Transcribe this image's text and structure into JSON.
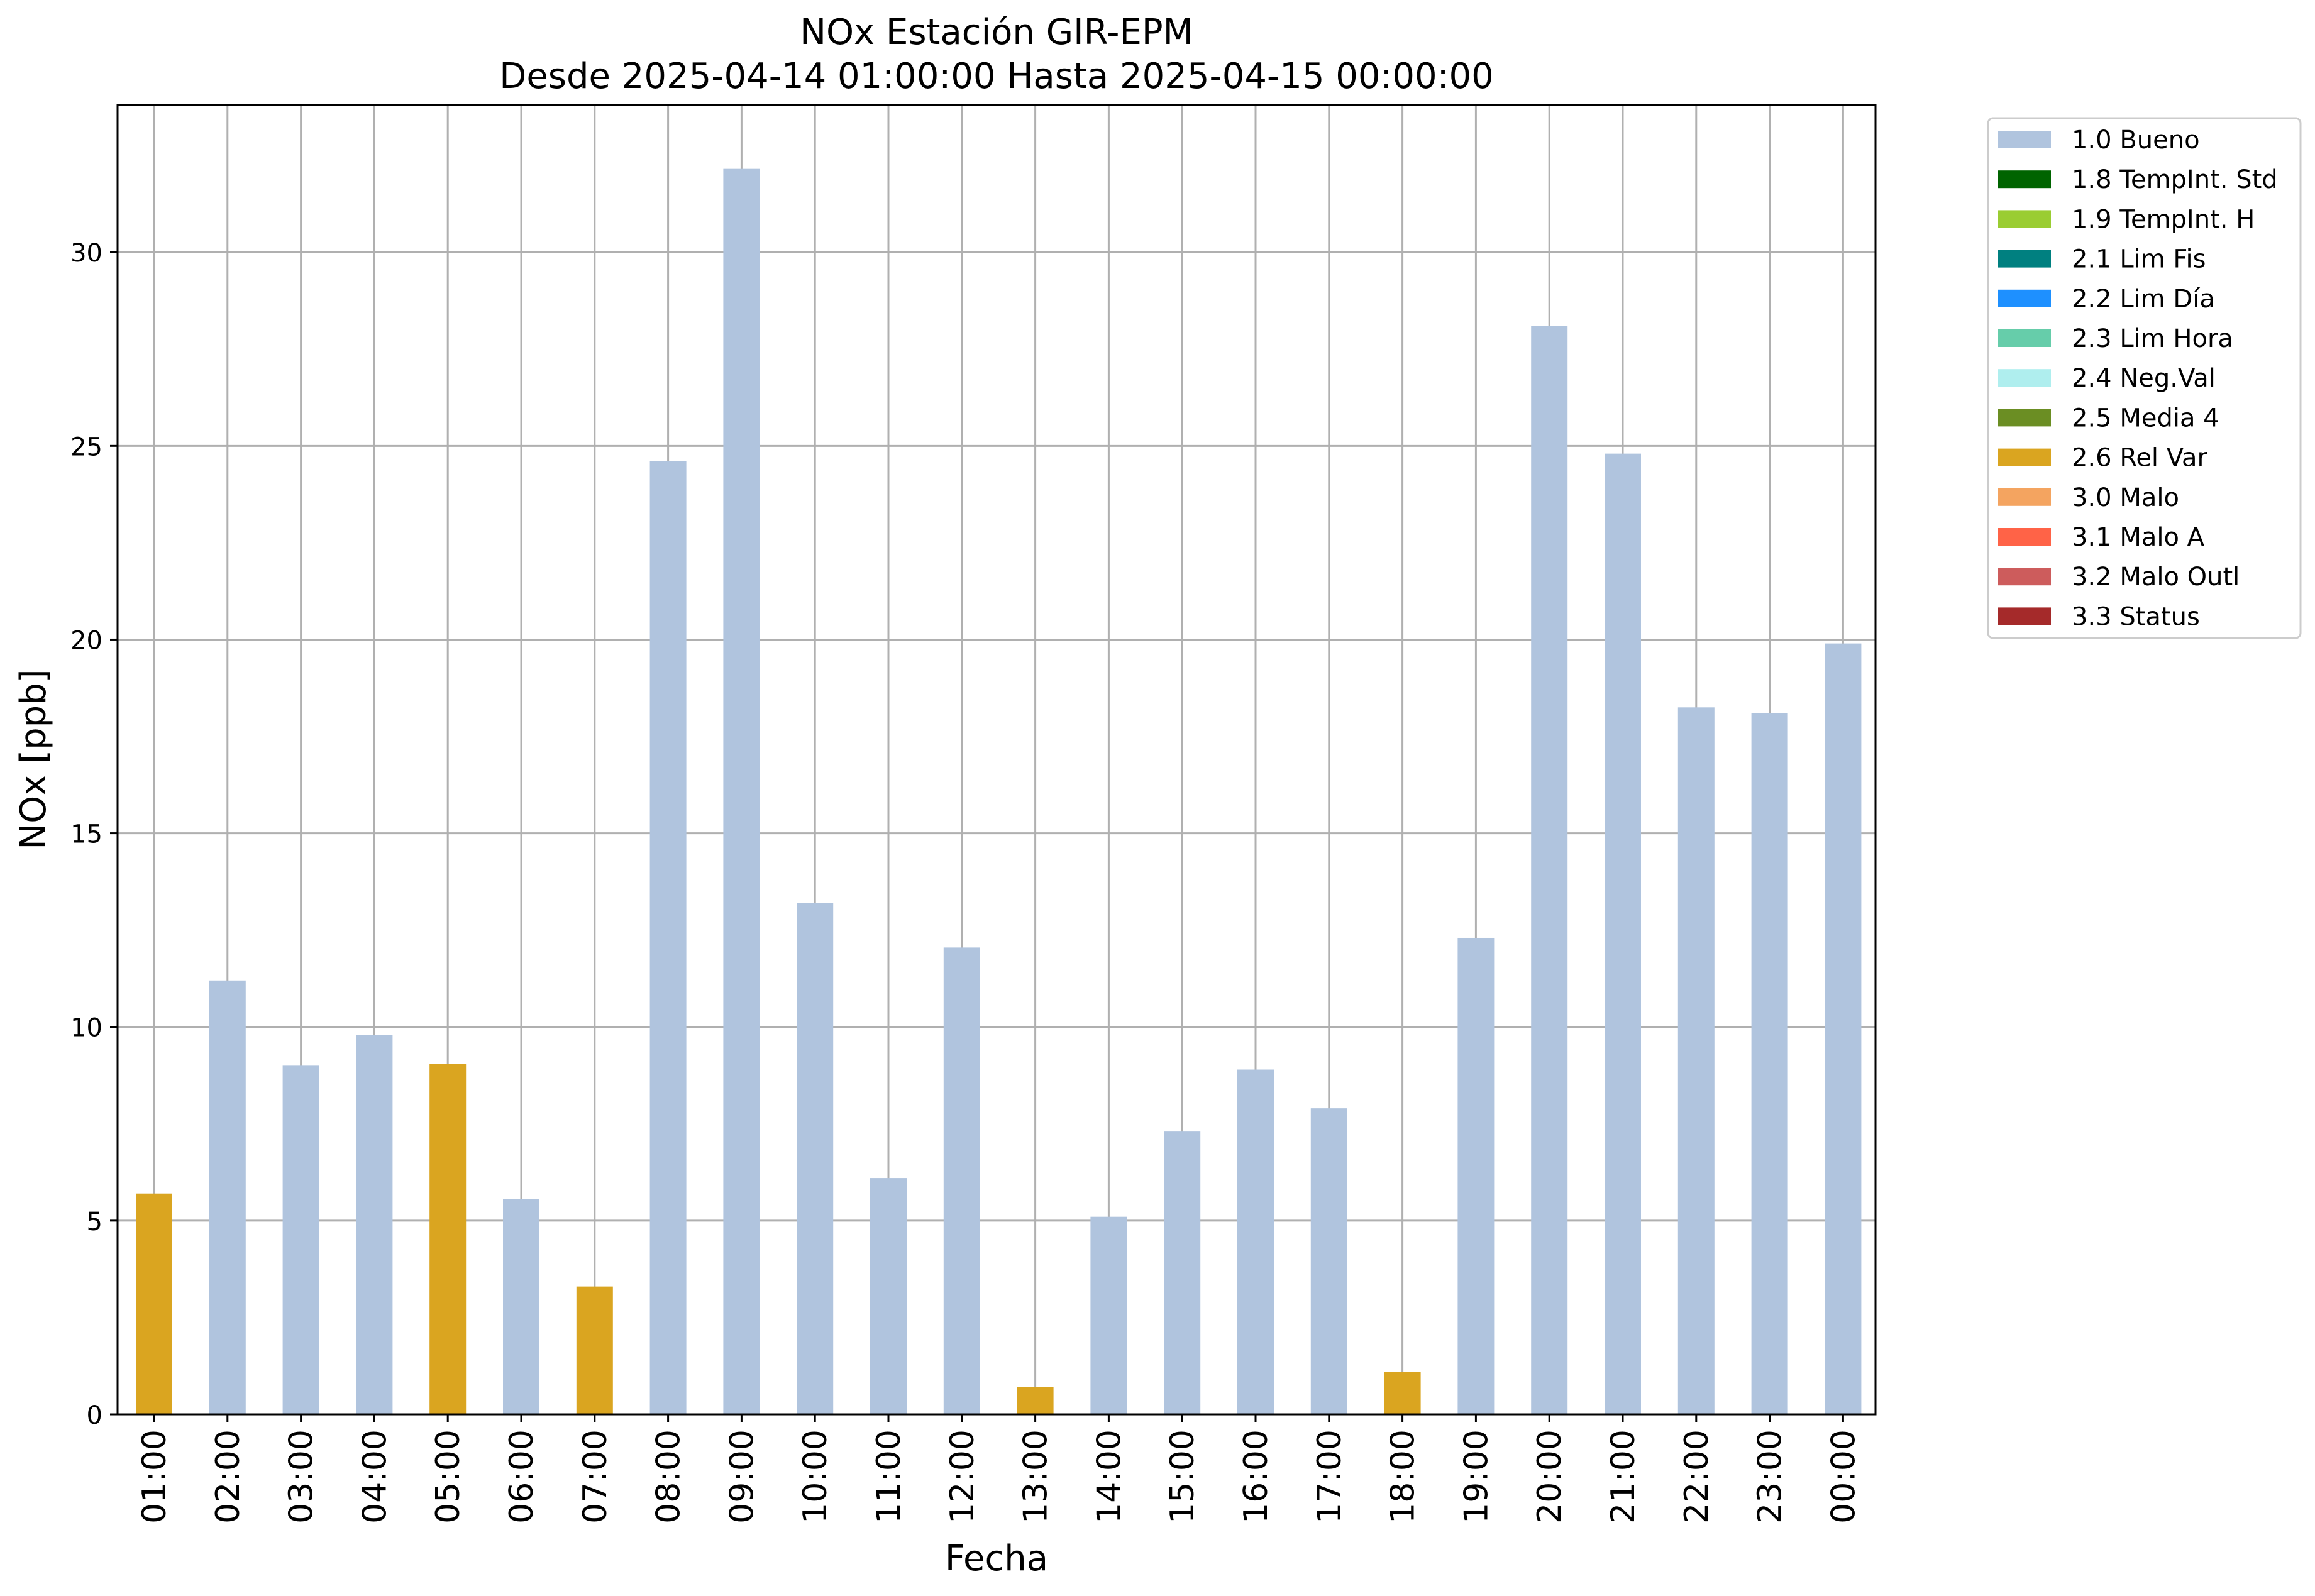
{
  "chart_data": {
    "type": "bar",
    "title": "NOx Estación GIR-EPM",
    "subtitle": "Desde 2025-04-14 01:00:00 Hasta 2025-04-15 00:00:00",
    "xlabel": "Fecha",
    "ylabel": "NOx [ppb]",
    "ylim": [
      0,
      33.8
    ],
    "yticks": [
      0,
      5,
      10,
      15,
      20,
      25,
      30
    ],
    "grid": true,
    "legend_position": "outside-top-right",
    "categories": [
      "01:00",
      "02:00",
      "03:00",
      "04:00",
      "05:00",
      "06:00",
      "07:00",
      "08:00",
      "09:00",
      "10:00",
      "11:00",
      "12:00",
      "13:00",
      "14:00",
      "15:00",
      "16:00",
      "17:00",
      "18:00",
      "19:00",
      "20:00",
      "21:00",
      "22:00",
      "23:00",
      "00:00"
    ],
    "values": [
      5.7,
      11.2,
      9.0,
      9.8,
      9.05,
      5.55,
      3.3,
      24.6,
      32.15,
      13.2,
      6.1,
      12.05,
      0.7,
      5.1,
      7.3,
      8.9,
      7.9,
      1.1,
      12.3,
      28.1,
      24.8,
      18.25,
      18.1,
      19.9
    ],
    "flags": [
      "2.6 Rel Var",
      "1.0 Bueno",
      "1.0 Bueno",
      "1.0 Bueno",
      "2.6 Rel Var",
      "1.0 Bueno",
      "2.6 Rel Var",
      "1.0 Bueno",
      "1.0 Bueno",
      "1.0 Bueno",
      "1.0 Bueno",
      "1.0 Bueno",
      "2.6 Rel Var",
      "1.0 Bueno",
      "1.0 Bueno",
      "1.0 Bueno",
      "1.0 Bueno",
      "2.6 Rel Var",
      "1.0 Bueno",
      "1.0 Bueno",
      "1.0 Bueno",
      "1.0 Bueno",
      "1.0 Bueno",
      "1.0 Bueno"
    ],
    "legend": [
      {
        "label": "1.0 Bueno",
        "color": "#b0c4de"
      },
      {
        "label": "1.8 TempInt. Std",
        "color": "#006400"
      },
      {
        "label": "1.9 TempInt. H",
        "color": "#9acd32"
      },
      {
        "label": "2.1 Lim Fis",
        "color": "#008080"
      },
      {
        "label": "2.2 Lim Día",
        "color": "#1e90ff"
      },
      {
        "label": "2.3 Lim Hora",
        "color": "#66cdaa"
      },
      {
        "label": "2.4 Neg.Val",
        "color": "#afeeee"
      },
      {
        "label": "2.5 Media 4",
        "color": "#6b8e23"
      },
      {
        "label": "2.6 Rel Var",
        "color": "#daa520"
      },
      {
        "label": "3.0 Malo",
        "color": "#f4a460"
      },
      {
        "label": "3.1 Malo A",
        "color": "#ff6347"
      },
      {
        "label": "3.2 Malo Outl",
        "color": "#cd5c5c"
      },
      {
        "label": "3.3 Status",
        "color": "#a52a2a"
      }
    ]
  }
}
